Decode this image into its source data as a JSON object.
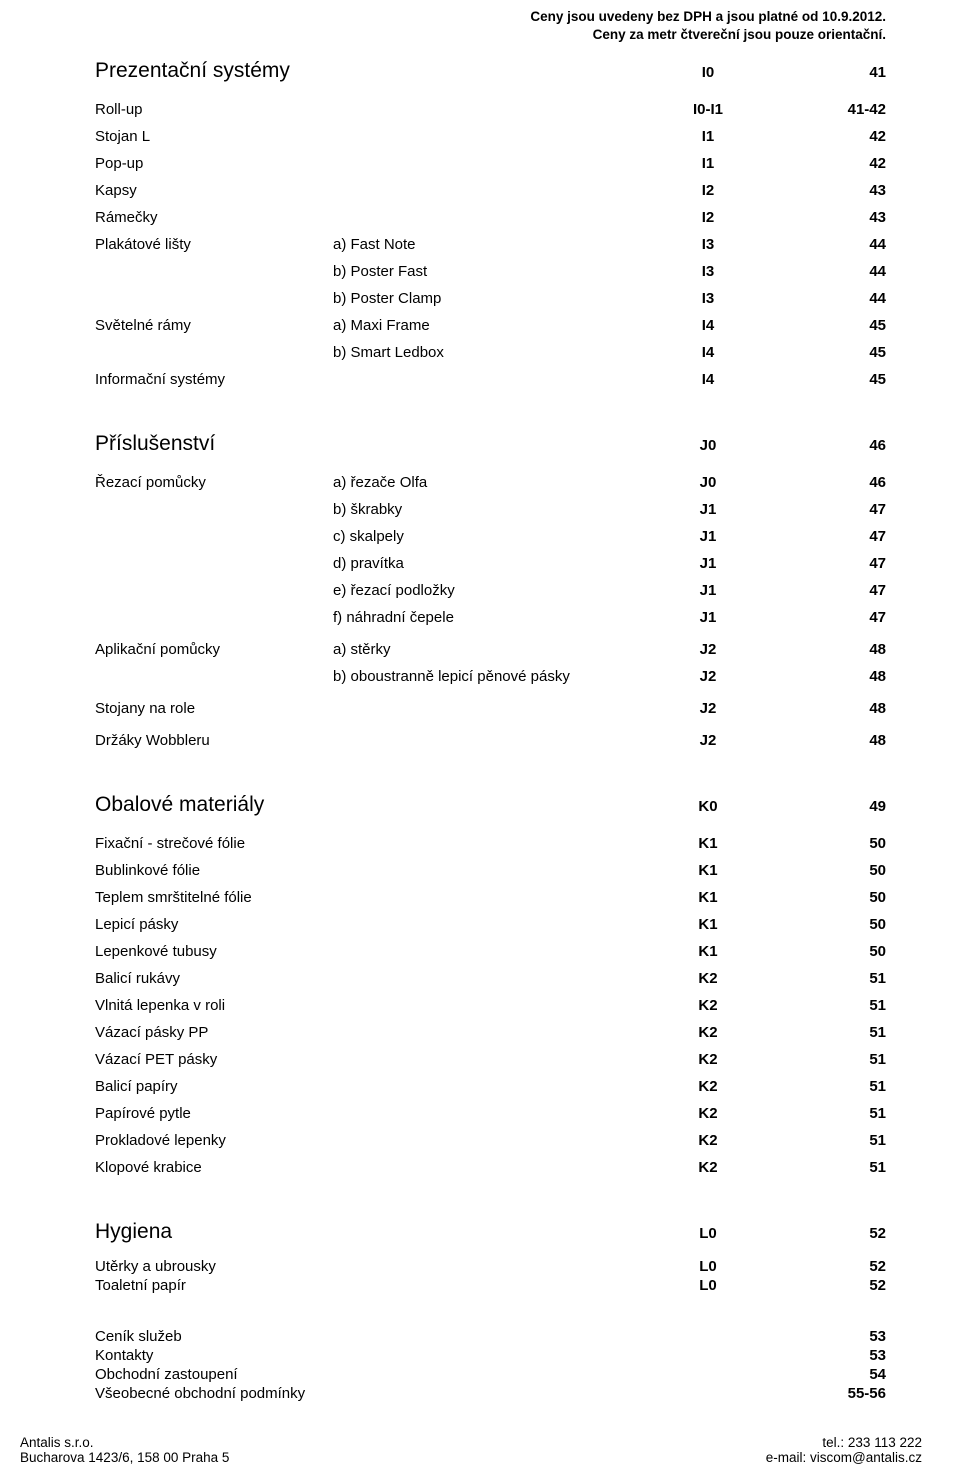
{
  "header_note_line1": "Ceny jsou uvedeny bez DPH a jsou platné od 10.9.2012.",
  "header_note_line2": "Ceny za metr čtvereční jsou pouze orientační.",
  "s1": {
    "title": "Prezentační systémy",
    "code": "I0",
    "page": "41",
    "rows": [
      {
        "name": "Roll-up",
        "sub": "",
        "code": "I0-I1",
        "page": "41-42",
        "bold": true
      },
      {
        "name": "Stojan L",
        "sub": "",
        "code": "I1",
        "page": "42",
        "bold": true
      },
      {
        "name": "Pop-up",
        "sub": "",
        "code": "I1",
        "page": "42",
        "bold": true
      },
      {
        "name": "Kapsy",
        "sub": "",
        "code": "I2",
        "page": "43",
        "bold": true
      },
      {
        "name": "Rámečky",
        "sub": "",
        "code": "I2",
        "page": "43",
        "bold": true
      },
      {
        "name": "Plakátové lišty",
        "sub": "a) Fast Note",
        "code": "I3",
        "page": "44",
        "bold": true
      },
      {
        "name": "",
        "sub": "b) Poster Fast",
        "code": "I3",
        "page": "44",
        "bold": true
      },
      {
        "name": "",
        "sub": "b) Poster Clamp",
        "code": "I3",
        "page": "44",
        "bold": true
      },
      {
        "name": "Světelné rámy",
        "sub": "a) Maxi Frame",
        "code": "I4",
        "page": "45",
        "bold": true
      },
      {
        "name": "",
        "sub": "b) Smart Ledbox",
        "code": "I4",
        "page": "45",
        "bold": true
      },
      {
        "name": "Informační systémy",
        "sub": "",
        "code": "I4",
        "page": "45",
        "bold": true
      }
    ]
  },
  "s2": {
    "title": "Příslušenství",
    "code": "J0",
    "page": "46",
    "rows": [
      {
        "name": "Řezací pomůcky",
        "sub": "a) řezače Olfa",
        "code": "J0",
        "page": "46",
        "bold": true
      },
      {
        "name": "",
        "sub": "b) škrabky",
        "code": "J1",
        "page": "47",
        "bold": true
      },
      {
        "name": "",
        "sub": "c) skalpely",
        "code": "J1",
        "page": "47",
        "bold": true
      },
      {
        "name": "",
        "sub": "d) pravítka",
        "code": "J1",
        "page": "47",
        "bold": true
      },
      {
        "name": "",
        "sub": "e) řezací podložky",
        "code": "J1",
        "page": "47",
        "bold": true
      },
      {
        "name": "",
        "sub": "f) náhradní čepele",
        "code": "J1",
        "page": "47",
        "bold": true
      },
      {
        "name": "Aplikační pomůcky",
        "sub": "a) stěrky",
        "code": "J2",
        "page": "48",
        "bold": true,
        "gap": true
      },
      {
        "name": "",
        "sub": "b) oboustranně lepicí pěnové pásky",
        "code": "J2",
        "page": "48",
        "bold": true
      },
      {
        "name": "Stojany na role",
        "sub": "",
        "code": "J2",
        "page": "48",
        "bold": true,
        "gap": true
      },
      {
        "name": "Držáky Wobbleru",
        "sub": "",
        "code": "J2",
        "page": "48",
        "bold": true,
        "gap": true
      }
    ]
  },
  "s3": {
    "title": "Obalové materiály",
    "code": "K0",
    "page": "49",
    "rows": [
      {
        "name": "Fixační - strečové fólie",
        "sub": "",
        "code": "K1",
        "page": "50",
        "bold": true
      },
      {
        "name": "Bublinkové fólie",
        "sub": "",
        "code": "K1",
        "page": "50",
        "bold": true
      },
      {
        "name": "Teplem smrštitelné fólie",
        "sub": "",
        "code": "K1",
        "page": "50",
        "bold": true
      },
      {
        "name": "Lepicí pásky",
        "sub": "",
        "code": "K1",
        "page": "50",
        "bold": true
      },
      {
        "name": "Lepenkové tubusy",
        "sub": "",
        "code": "K1",
        "page": "50",
        "bold": true
      },
      {
        "name": "Balicí rukávy",
        "sub": "",
        "code": "K2",
        "page": "51",
        "bold": true
      },
      {
        "name": "Vlnitá lepenka v roli",
        "sub": "",
        "code": "K2",
        "page": "51",
        "bold": true
      },
      {
        "name": "Vázací pásky PP",
        "sub": "",
        "code": "K2",
        "page": "51",
        "bold": true
      },
      {
        "name": "Vázací PET pásky",
        "sub": "",
        "code": "K2",
        "page": "51",
        "bold": true
      },
      {
        "name": "Balicí papíry",
        "sub": "",
        "code": "K2",
        "page": "51",
        "bold": true
      },
      {
        "name": "Papírové pytle",
        "sub": "",
        "code": "K2",
        "page": "51",
        "bold": true
      },
      {
        "name": "Prokladové lepenky",
        "sub": "",
        "code": "K2",
        "page": "51",
        "bold": true
      },
      {
        "name": "Klopové krabice",
        "sub": "",
        "code": "K2",
        "page": "51",
        "bold": true
      }
    ]
  },
  "s4": {
    "title": "Hygiena",
    "code": "L0",
    "page": "52",
    "rows": [
      {
        "name": "Utěrky a ubrousky",
        "sub": "",
        "code": "L0",
        "page": "52",
        "bold": true
      },
      {
        "name": "Toaletní papír",
        "sub": "",
        "code": "L0",
        "page": "52",
        "bold": true
      }
    ]
  },
  "appendix": [
    {
      "name": "Ceník služeb",
      "page": "53"
    },
    {
      "name": "Kontakty",
      "page": "53"
    },
    {
      "name": "Obchodní zastoupení",
      "page": "54"
    },
    {
      "name": "Všeobecné obchodní podmínky",
      "page": "55-56"
    }
  ],
  "footer": {
    "left1": "Antalis s.r.o.",
    "left2": "Bucharova 1423/6, 158 00 Praha 5",
    "right1": "tel.: 233 113 222",
    "right2": "e-mail: viscom@antalis.cz"
  }
}
